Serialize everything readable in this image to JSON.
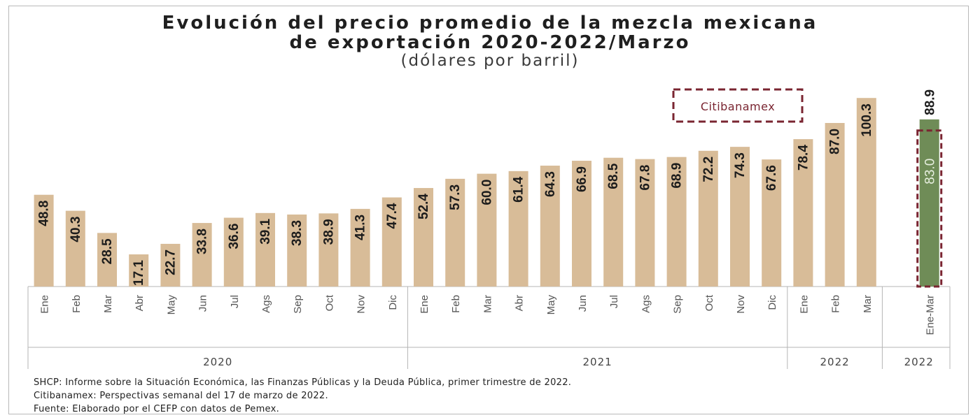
{
  "chart_data": {
    "type": "bar",
    "title_line1": "Evolución del precio promedio de la mezcla mexicana",
    "title_line2": "de exportación 2020-2022/Marzo",
    "subtitle": "(dólares por barril)",
    "categories": [
      "Ene",
      "Feb",
      "Mar",
      "Abr",
      "May",
      "Jun",
      "Jul",
      "Ags",
      "Sep",
      "Oct",
      "Nov",
      "Dic",
      "Ene",
      "Feb",
      "Mar",
      "Abr",
      "May",
      "Jun",
      "Jul",
      "Ags",
      "Sep",
      "Oct",
      "Nov",
      "Dic",
      "Ene",
      "Feb",
      "Mar"
    ],
    "values": [
      48.8,
      40.3,
      28.5,
      17.1,
      22.7,
      33.8,
      36.6,
      39.1,
      38.3,
      38.9,
      41.3,
      47.4,
      52.4,
      57.3,
      60.0,
      61.4,
      64.3,
      66.9,
      68.5,
      67.8,
      68.9,
      72.2,
      74.3,
      67.6,
      78.4,
      87.0,
      100.3
    ],
    "value_labels": [
      "48.8",
      "40.3",
      "28.5",
      "17.1",
      "22.7",
      "33.8",
      "36.6",
      "39.1",
      "38.3",
      "38.9",
      "41.3",
      "47.4",
      "52.4",
      "57.3",
      "60.0",
      "61.4",
      "64.3",
      "66.9",
      "68.5",
      "67.8",
      "68.9",
      "72.2",
      "74.3",
      "67.6",
      "78.4",
      "87.0",
      "100.3"
    ],
    "year_groups": [
      {
        "label": "2020",
        "count": 12
      },
      {
        "label": "2021",
        "count": 12
      },
      {
        "label": "2022",
        "count": 3
      }
    ],
    "forecast": {
      "category": "Ene-Mar",
      "year": "2022",
      "shcp_value": 88.9,
      "shcp_label": "88.9",
      "citibanamex_value": 83.0,
      "citibanamex_label": "83.0",
      "legend_label": "Citibanamex"
    },
    "ylim": [
      0,
      105
    ],
    "colors": {
      "bar": "#d8bc98",
      "forecast_bar": "#6f8c57",
      "forecast_box": "#7a2531",
      "axis_line": "#b5b5b5",
      "label_dark": "#1c1c1c",
      "label_light": "#e7efdf"
    },
    "grid": false
  },
  "footnotes": [
    "SHCP: Informe sobre la Situación Económica, las Finanzas Públicas y la Deuda Pública, primer trimestre de 2022.",
    "Citibanamex: Perspectivas semanal del 17 de marzo de 2022.",
    "Fuente: Elaborado por el CEFP con datos de Pemex."
  ]
}
